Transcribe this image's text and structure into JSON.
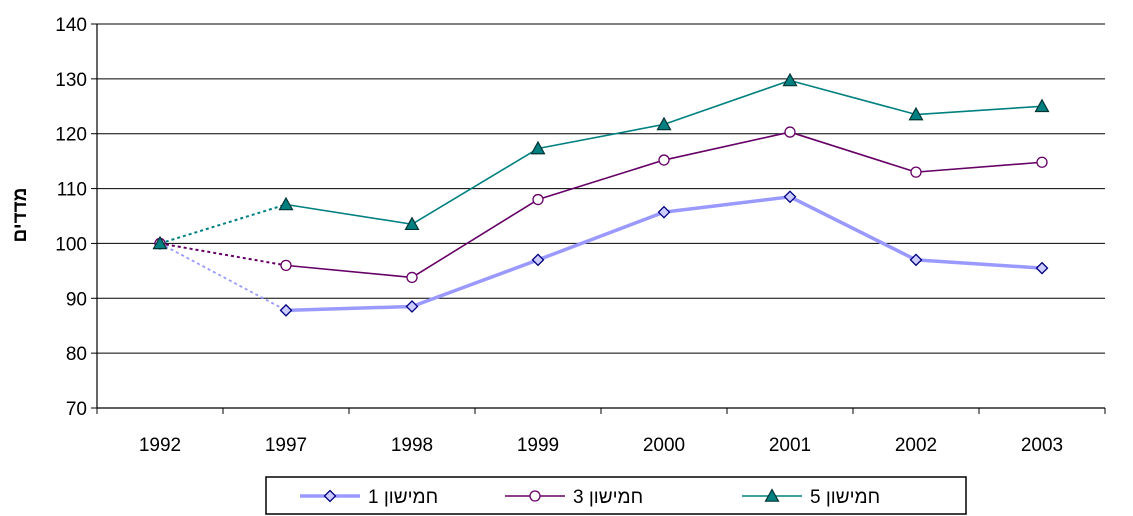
{
  "chart_data": {
    "type": "line",
    "ylabel": "מדדים",
    "xlabel": "",
    "title": "",
    "ylim": [
      70,
      140
    ],
    "yticks": [
      70,
      80,
      90,
      100,
      110,
      120,
      130,
      140
    ],
    "grid": "horizontal",
    "legend_position": "bottom",
    "categories": [
      "1992",
      "1997",
      "1998",
      "1999",
      "2000",
      "2001",
      "2002",
      "2003"
    ],
    "dotted_segment": "1992-1997",
    "series": [
      {
        "name": "חמישון 1",
        "values": [
          100,
          87.8,
          88.5,
          97,
          105.7,
          108.5,
          97,
          95.5
        ],
        "color": "#9999FF",
        "marker": "diamond",
        "marker_fill": "#CCCCFF",
        "marker_stroke": "#000080"
      },
      {
        "name": "חמישון 3",
        "values": [
          100,
          96,
          93.8,
          108,
          115.2,
          120.3,
          113,
          114.8
        ],
        "color": "#660066",
        "marker": "circle",
        "marker_fill": "#FFFFFF",
        "marker_stroke": "#660066"
      },
      {
        "name": "חמישון 5",
        "values": [
          100,
          107.1,
          103.5,
          117.3,
          121.7,
          129.7,
          123.5,
          125
        ],
        "color": "#008080",
        "marker": "triangle",
        "marker_fill": "#008080",
        "marker_stroke": "#003333"
      }
    ]
  }
}
